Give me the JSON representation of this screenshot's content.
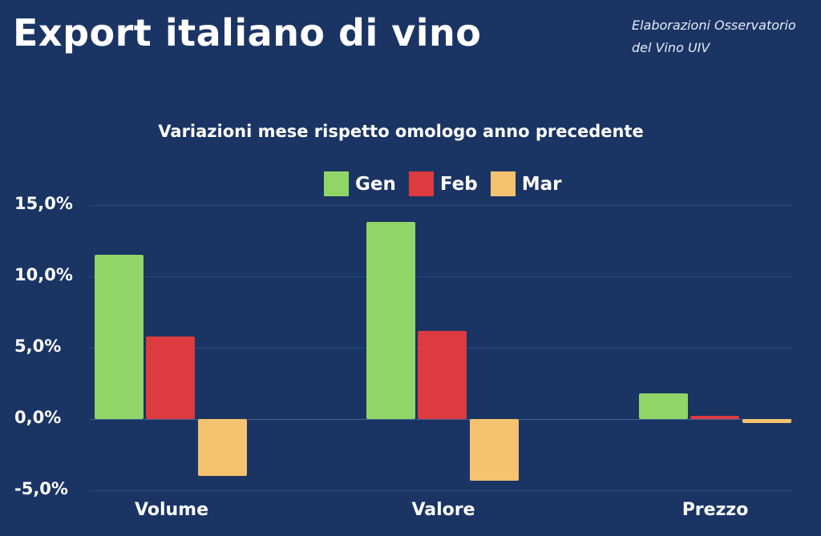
{
  "header": {
    "title": "Export italiano di vino",
    "source_line1": "Elaborazioni Osservatorio",
    "source_line2": "del Vino UIV"
  },
  "colors": {
    "background": "#1a3464",
    "Gen": "#90d667",
    "Feb": "#dc3b40",
    "Mar": "#f5c270"
  },
  "chart_data": {
    "type": "bar",
    "title": "Variazioni mese rispetto omologo anno precedente",
    "categories": [
      "Volume",
      "Valore",
      "Prezzo"
    ],
    "series": [
      {
        "name": "Gen",
        "values": [
          11.5,
          13.8,
          1.8
        ]
      },
      {
        "name": "Feb",
        "values": [
          5.8,
          6.2,
          0.2
        ]
      },
      {
        "name": "Mar",
        "values": [
          -4.0,
          -4.3,
          -0.3
        ]
      }
    ],
    "yticks": [
      "15,0%",
      "10,0%",
      "5,0%",
      "0,0%",
      "-5,0%"
    ],
    "ylim": [
      -5,
      15
    ],
    "xlabel": "",
    "ylabel": "",
    "grid": true,
    "legend_position": "top"
  }
}
